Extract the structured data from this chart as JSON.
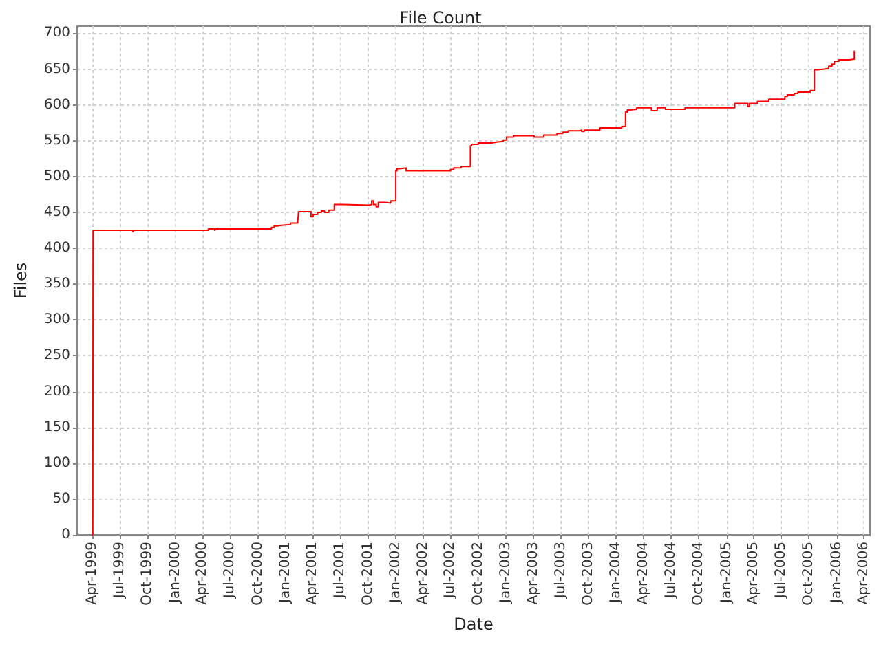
{
  "chart_data": {
    "type": "step",
    "title": "File Count",
    "xlabel": "Date",
    "ylabel": "Files",
    "color": "#ff0000",
    "grid": true,
    "x": [
      "1999-04-03",
      "1999-04-04",
      "1999-08-14",
      "1999-08-17",
      "2000-04-20",
      "2000-05-11",
      "2000-05-14",
      "2000-11-15",
      "2000-11-24",
      "2000-12-05",
      "2000-12-18",
      "2001-01-17",
      "2001-02-10",
      "2001-02-13",
      "2001-03-26",
      "2001-04-02",
      "2001-04-17",
      "2001-04-29",
      "2001-05-10",
      "2001-05-24",
      "2001-06-11",
      "2001-07-08",
      "2001-10-05",
      "2001-10-13",
      "2001-10-19",
      "2001-10-28",
      "2001-11-04",
      "2001-11-30",
      "2001-12-15",
      "2002-01-01",
      "2002-01-05",
      "2002-01-15",
      "2002-02-04",
      "2002-07-01",
      "2002-07-12",
      "2002-08-05",
      "2002-09-05",
      "2002-09-09",
      "2002-10-01",
      "2002-11-15",
      "2002-11-30",
      "2002-12-23",
      "2003-01-03",
      "2003-01-26",
      "2003-04-04",
      "2003-05-06",
      "2003-06-19",
      "2003-07-08",
      "2003-07-26",
      "2003-09-02",
      "2003-09-09",
      "2003-09-17",
      "2003-11-08",
      "2004-01-20",
      "2004-02-01",
      "2004-02-07",
      "2004-02-16",
      "2004-03-09",
      "2004-04-27",
      "2004-05-16",
      "2004-06-12",
      "2004-08-16",
      "2005-01-28",
      "2005-03-12",
      "2005-03-18",
      "2005-04-13",
      "2005-05-21",
      "2005-07-13",
      "2005-07-21",
      "2005-08-13",
      "2005-08-25",
      "2005-10-05",
      "2005-10-19",
      "2005-10-31",
      "2005-11-20",
      "2005-12-05",
      "2005-12-16",
      "2005-12-24",
      "2006-01-08",
      "2006-02-12",
      "2006-02-28"
    ],
    "values": [
      0,
      425,
      423,
      425,
      427,
      425,
      427,
      429,
      431,
      432,
      433,
      435,
      437,
      451,
      444,
      447,
      450,
      452,
      450,
      453,
      461,
      460,
      461,
      466,
      461,
      458,
      464,
      463,
      466,
      508,
      511,
      512,
      508,
      510,
      512,
      514,
      543,
      545,
      547,
      548,
      549,
      551,
      555,
      557,
      555,
      558,
      560,
      562,
      564,
      565,
      563,
      565,
      568,
      570,
      590,
      593,
      594,
      596,
      592,
      596,
      594,
      596,
      602,
      598,
      602,
      605,
      608,
      612,
      614,
      616,
      618,
      620,
      649,
      650,
      651,
      654,
      657,
      661,
      663,
      664,
      675
    ],
    "xlim": [
      "1999-02-10",
      "2006-04-21"
    ],
    "xticks": [
      {
        "value": "1999-04-01",
        "label": "Apr-1999"
      },
      {
        "value": "1999-07-01",
        "label": "Jul-1999"
      },
      {
        "value": "1999-10-01",
        "label": "Oct-1999"
      },
      {
        "value": "2000-01-01",
        "label": "Jan-2000"
      },
      {
        "value": "2000-04-01",
        "label": "Apr-2000"
      },
      {
        "value": "2000-07-01",
        "label": "Jul-2000"
      },
      {
        "value": "2000-10-01",
        "label": "Oct-2000"
      },
      {
        "value": "2001-01-01",
        "label": "Jan-2001"
      },
      {
        "value": "2001-04-01",
        "label": "Apr-2001"
      },
      {
        "value": "2001-07-01",
        "label": "Jul-2001"
      },
      {
        "value": "2001-10-01",
        "label": "Oct-2001"
      },
      {
        "value": "2002-01-01",
        "label": "Jan-2002"
      },
      {
        "value": "2002-04-01",
        "label": "Apr-2002"
      },
      {
        "value": "2002-07-01",
        "label": "Jul-2002"
      },
      {
        "value": "2002-10-01",
        "label": "Oct-2002"
      },
      {
        "value": "2003-01-01",
        "label": "Jan-2003"
      },
      {
        "value": "2003-04-01",
        "label": "Apr-2003"
      },
      {
        "value": "2003-07-01",
        "label": "Jul-2003"
      },
      {
        "value": "2003-10-01",
        "label": "Oct-2003"
      },
      {
        "value": "2004-01-01",
        "label": "Jan-2004"
      },
      {
        "value": "2004-04-01",
        "label": "Apr-2004"
      },
      {
        "value": "2004-07-01",
        "label": "Jul-2004"
      },
      {
        "value": "2004-10-01",
        "label": "Oct-2004"
      },
      {
        "value": "2005-01-01",
        "label": "Jan-2005"
      },
      {
        "value": "2005-04-01",
        "label": "Apr-2005"
      },
      {
        "value": "2005-07-01",
        "label": "Jul-2005"
      },
      {
        "value": "2005-10-01",
        "label": "Oct-2005"
      },
      {
        "value": "2006-01-01",
        "label": "Jan-2006"
      },
      {
        "value": "2006-04-01",
        "label": "Apr-2006"
      }
    ],
    "ylim": [
      0,
      710
    ],
    "yticks": [
      0,
      50,
      100,
      150,
      200,
      250,
      300,
      350,
      400,
      450,
      500,
      550,
      600,
      650,
      700
    ]
  }
}
